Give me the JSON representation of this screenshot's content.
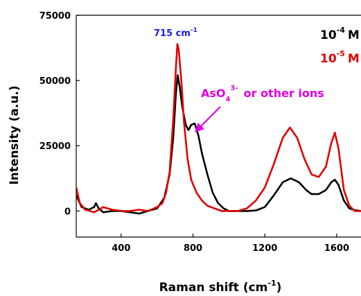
{
  "chart_data": {
    "type": "line",
    "xlabel": "Raman shift (cm",
    "xlabel_sup": "-1",
    "xlabel_close": ")",
    "ylabel": "Intensity (a.u.)",
    "xlim": [
      150,
      1770
    ],
    "ylim": [
      -10000,
      75000
    ],
    "x_ticks": [
      400,
      800,
      1200,
      1600
    ],
    "y_ticks": [
      0,
      25000,
      50000,
      75000
    ],
    "legend_position": "top-right",
    "series": [
      {
        "name_base": "10",
        "name_exp": "-4",
        "name_unit": "M",
        "color": "#000000",
        "points": [
          [
            150,
            6000
          ],
          [
            180,
            1500
          ],
          [
            220,
            500
          ],
          [
            250,
            1500
          ],
          [
            260,
            3000
          ],
          [
            275,
            1000
          ],
          [
            300,
            -500
          ],
          [
            350,
            0
          ],
          [
            400,
            0
          ],
          [
            450,
            -500
          ],
          [
            500,
            -1000
          ],
          [
            550,
            0
          ],
          [
            600,
            1000
          ],
          [
            640,
            5000
          ],
          [
            670,
            14000
          ],
          [
            690,
            28000
          ],
          [
            705,
            45000
          ],
          [
            715,
            52000
          ],
          [
            725,
            48000
          ],
          [
            740,
            40000
          ],
          [
            760,
            33000
          ],
          [
            775,
            31000
          ],
          [
            790,
            33000
          ],
          [
            810,
            33500
          ],
          [
            830,
            29000
          ],
          [
            850,
            22000
          ],
          [
            880,
            14000
          ],
          [
            910,
            7000
          ],
          [
            940,
            3000
          ],
          [
            970,
            1000
          ],
          [
            1000,
            0
          ],
          [
            1050,
            0
          ],
          [
            1100,
            0
          ],
          [
            1150,
            200
          ],
          [
            1200,
            1500
          ],
          [
            1250,
            6000
          ],
          [
            1300,
            11000
          ],
          [
            1345,
            12500
          ],
          [
            1390,
            11000
          ],
          [
            1430,
            8000
          ],
          [
            1460,
            6500
          ],
          [
            1500,
            6500
          ],
          [
            1540,
            8000
          ],
          [
            1570,
            11000
          ],
          [
            1590,
            12000
          ],
          [
            1610,
            10000
          ],
          [
            1640,
            4000
          ],
          [
            1670,
            1000
          ],
          [
            1700,
            300
          ],
          [
            1740,
            0
          ],
          [
            1770,
            0
          ]
        ]
      },
      {
        "name_base": "10",
        "name_exp": "-5",
        "name_unit": "M",
        "color": "#e00000",
        "points": [
          [
            150,
            9000
          ],
          [
            170,
            3000
          ],
          [
            200,
            500
          ],
          [
            250,
            -500
          ],
          [
            300,
            1500
          ],
          [
            350,
            500
          ],
          [
            400,
            0
          ],
          [
            450,
            0
          ],
          [
            500,
            500
          ],
          [
            550,
            0
          ],
          [
            600,
            1500
          ],
          [
            630,
            3000
          ],
          [
            650,
            7000
          ],
          [
            670,
            15000
          ],
          [
            690,
            35000
          ],
          [
            705,
            55000
          ],
          [
            713,
            64000
          ],
          [
            720,
            62000
          ],
          [
            735,
            50000
          ],
          [
            750,
            34000
          ],
          [
            770,
            20000
          ],
          [
            790,
            12000
          ],
          [
            820,
            7000
          ],
          [
            850,
            4000
          ],
          [
            880,
            2000
          ],
          [
            920,
            1000
          ],
          [
            960,
            0
          ],
          [
            1000,
            0
          ],
          [
            1050,
            0
          ],
          [
            1100,
            1000
          ],
          [
            1150,
            4000
          ],
          [
            1200,
            9000
          ],
          [
            1250,
            18000
          ],
          [
            1300,
            28000
          ],
          [
            1340,
            32000
          ],
          [
            1380,
            28000
          ],
          [
            1420,
            20000
          ],
          [
            1460,
            14000
          ],
          [
            1500,
            13000
          ],
          [
            1540,
            17000
          ],
          [
            1570,
            26000
          ],
          [
            1590,
            30000
          ],
          [
            1610,
            24000
          ],
          [
            1640,
            8000
          ],
          [
            1670,
            2000
          ],
          [
            1700,
            0
          ],
          [
            1740,
            0
          ],
          [
            1770,
            1000
          ]
        ]
      }
    ],
    "annotations": {
      "peak_label": "715 cm",
      "peak_label_sup": "-1",
      "peak_color": "#2020e0",
      "ion_prefix": "AsO",
      "ion_sub": "4",
      "ion_sup": "3-",
      "ion_suffix": "or other ions",
      "ion_color": "#e000e0"
    }
  }
}
